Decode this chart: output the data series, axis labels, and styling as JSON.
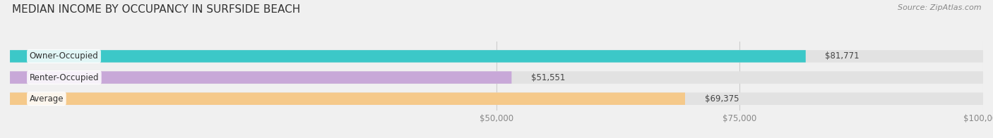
{
  "title": "MEDIAN INCOME BY OCCUPANCY IN SURFSIDE BEACH",
  "source": "Source: ZipAtlas.com",
  "categories": [
    "Owner-Occupied",
    "Renter-Occupied",
    "Average"
  ],
  "values": [
    81771,
    51551,
    69375
  ],
  "bar_colors": [
    "#3cc8c8",
    "#c8a8d8",
    "#f5c98a"
  ],
  "bar_labels": [
    "$81,771",
    "$51,551",
    "$69,375"
  ],
  "xlim": [
    0,
    100000
  ],
  "background_color": "#f0f0f0",
  "bar_background_color": "#e2e2e2",
  "title_fontsize": 11,
  "source_fontsize": 8,
  "label_fontsize": 8.5,
  "tick_fontsize": 8.5
}
